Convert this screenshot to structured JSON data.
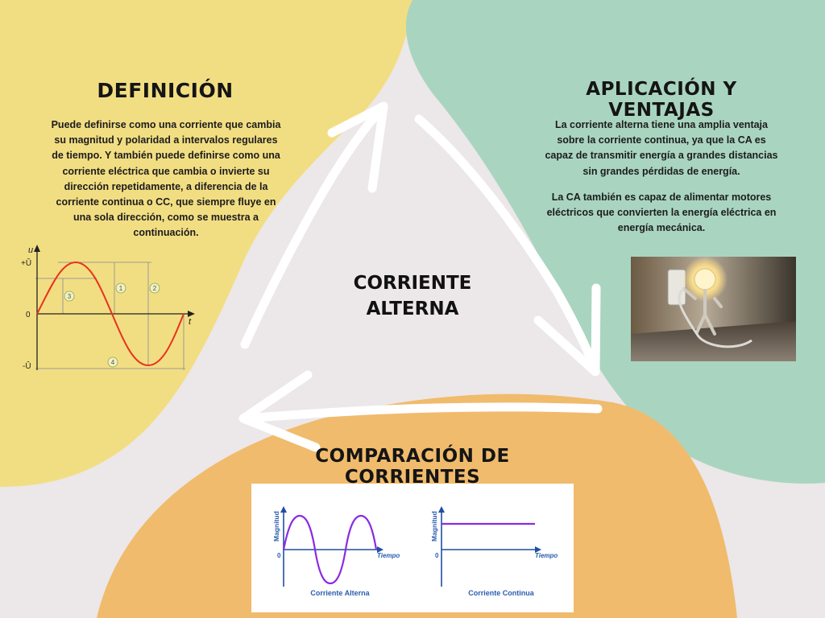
{
  "colors": {
    "background": "#ece7e8",
    "yellow_blob": "#f2de82",
    "green_blob": "#a9d5c0",
    "orange_blob": "#f0bb6c",
    "arrow": "#ffffff",
    "sine_red": "#e8321e",
    "comparison_purple": "#8a2be2",
    "comparison_label": "#2a5db0"
  },
  "definition": {
    "title": "DEFINICIÓN",
    "text": "Puede definirse como una corriente que cambia su magnitud y polaridad a intervalos regulares de tiempo. Y también puede definirse como una corriente eléctrica que cambia o invierte su dirección repetidamente, a diferencia de la corriente continua o CC, que siempre fluye en una sola dirección, como se muestra a continuación."
  },
  "sine_graph": {
    "y_axis_label": "u",
    "x_axis_label": "t",
    "tick_pos": "+Û",
    "tick_zero": "0",
    "tick_neg": "-Û",
    "markers": [
      "1",
      "2",
      "3",
      "4"
    ]
  },
  "applications": {
    "title": "APLICACIÓN Y VENTAJAS",
    "paragraph1": "La corriente alterna tiene una amplia ventaja sobre la corriente continua, ya que la CA es capaz de transmitir energía a grandes distancias sin grandes pérdidas de energía.",
    "paragraph2": "La CA también es capaz de alimentar motores eléctricos que convierten la energía eléctrica en energía mecánica."
  },
  "center": {
    "line1": "CORRIENTE",
    "line2": "ALTERNA"
  },
  "comparison": {
    "title": "COMPARACIÓN DE CORRIENTES",
    "ac": {
      "y_label": "Magnitud",
      "x_label": "Tiempo",
      "origin": "0",
      "caption": "Corriente Alterna"
    },
    "dc": {
      "y_label": "Magnitud",
      "x_label": "Tiempo",
      "origin": "0",
      "caption": "Corriente Continua"
    }
  },
  "photo": {
    "subject": "lightbulb-figure-plugging-into-wall-socket"
  }
}
